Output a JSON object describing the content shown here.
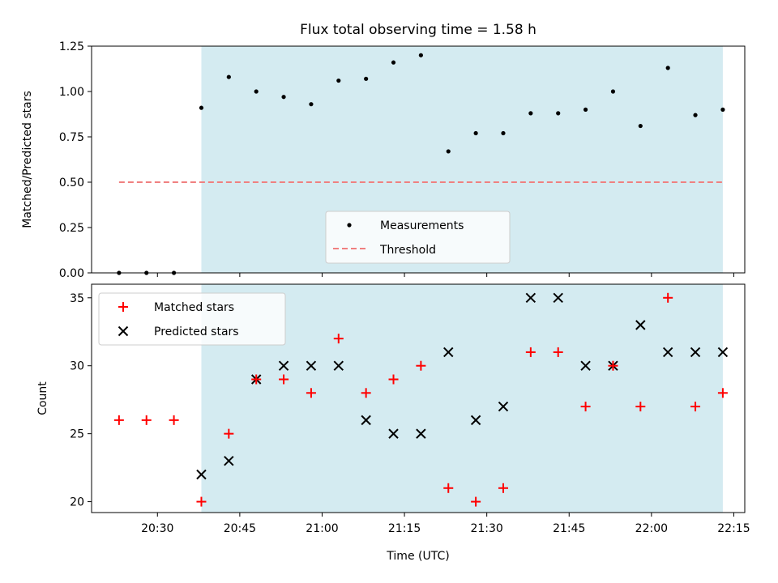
{
  "chart_data": [
    {
      "type": "scatter",
      "title": "Flux total observing time = 1.58 h",
      "xlabel": "",
      "ylabel": "Matched/Predicted stars",
      "xlim": [
        "20:18",
        "22:17"
      ],
      "ylim": [
        0,
        1.25
      ],
      "yticks": [
        "0.00",
        "0.25",
        "0.50",
        "0.75",
        "1.00",
        "1.25"
      ],
      "x": [
        "20:23",
        "20:28",
        "20:33",
        "20:38",
        "20:43",
        "20:48",
        "20:53",
        "20:58",
        "21:03",
        "21:08",
        "21:13",
        "21:18",
        "21:23",
        "21:28",
        "21:33",
        "21:38",
        "21:43",
        "21:48",
        "21:53",
        "21:58",
        "22:03",
        "22:08",
        "22:13"
      ],
      "series": [
        {
          "name": "Measurements",
          "marker": "dot",
          "color": "#000000",
          "values": [
            0,
            0,
            0,
            0.91,
            1.08,
            1.0,
            0.97,
            0.93,
            1.06,
            1.07,
            1.16,
            1.2,
            0.67,
            0.77,
            0.77,
            0.88,
            0.88,
            0.9,
            1.0,
            0.81,
            1.13,
            0.87,
            0.9
          ]
        },
        {
          "name": "Threshold",
          "style": "dashed",
          "color": "#f08080",
          "values": [
            0.5,
            0.5,
            0.5,
            0.5,
            0.5,
            0.5,
            0.5,
            0.5,
            0.5,
            0.5,
            0.5,
            0.5,
            0.5,
            0.5,
            0.5,
            0.5,
            0.5,
            0.5,
            0.5,
            0.5,
            0.5,
            0.5,
            0.5
          ]
        }
      ],
      "shaded_span": [
        "20:38",
        "22:13"
      ],
      "shade_color": "#d4ebf1",
      "legend": "bottom-center"
    },
    {
      "type": "scatter",
      "xlabel": "Time (UTC)",
      "ylabel": "Count",
      "xlim": [
        "20:18",
        "22:17"
      ],
      "ylim": [
        19.2,
        36
      ],
      "xticks": [
        "20:30",
        "20:45",
        "21:00",
        "21:15",
        "21:30",
        "21:45",
        "22:00",
        "22:15"
      ],
      "yticks": [
        "20",
        "25",
        "30",
        "35"
      ],
      "x": [
        "20:23",
        "20:28",
        "20:33",
        "20:38",
        "20:43",
        "20:48",
        "20:53",
        "20:58",
        "21:03",
        "21:08",
        "21:13",
        "21:18",
        "21:23",
        "21:28",
        "21:33",
        "21:38",
        "21:43",
        "21:48",
        "21:53",
        "21:58",
        "22:03",
        "22:08",
        "22:13"
      ],
      "series": [
        {
          "name": "Matched stars",
          "marker": "plus",
          "color": "#ff0000",
          "values": [
            26,
            26,
            26,
            20,
            25,
            29,
            29,
            28,
            32,
            28,
            29,
            30,
            21,
            20,
            21,
            31,
            31,
            27,
            30,
            27,
            35,
            27,
            28
          ]
        },
        {
          "name": "Predicted stars",
          "marker": "x",
          "color": "#000000",
          "values": [
            null,
            null,
            null,
            22,
            23,
            29,
            30,
            30,
            30,
            26,
            25,
            25,
            31,
            26,
            27,
            35,
            35,
            30,
            30,
            33,
            31,
            31,
            31
          ]
        }
      ],
      "shaded_span": [
        "20:38",
        "22:13"
      ],
      "shade_color": "#d4ebf1",
      "legend": "top-left"
    }
  ]
}
